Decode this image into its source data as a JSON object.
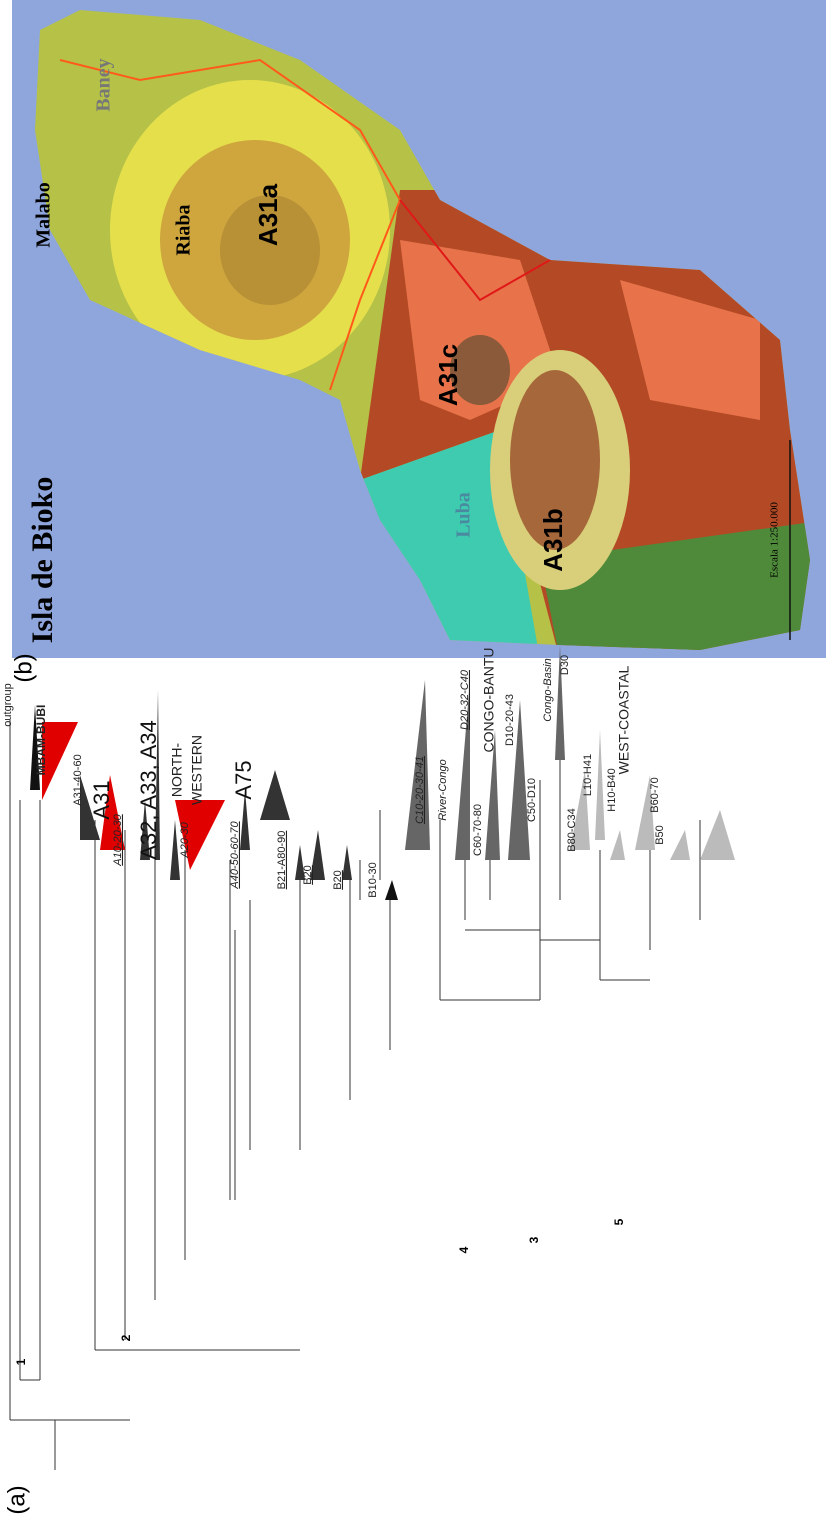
{
  "panel_a": {
    "label": "(a)",
    "outgroup": "outgroup",
    "groups": [
      "MBAM-BUBI",
      "A31",
      "A32, A33, A34",
      "NORTH-",
      "WESTERN",
      "A75",
      "CONGO-BANTU",
      "WEST-COASTAL"
    ],
    "clades": [
      "A31-40-60",
      "A10-20-30",
      "A20-30",
      "A40-50-60-70",
      "B21-A80-90",
      "B20",
      "B20",
      "B10-30",
      "C10-20-30-41",
      "River-Congo",
      "D20-32-C40",
      "C60-70-80",
      "D10-20-43",
      "Congo-Basin",
      "C50-D10",
      "D30",
      "B80-C34",
      "L10-H41",
      "H10-B40",
      "B50",
      "B60-70"
    ],
    "nodes": [
      "1",
      "2",
      "3",
      "4",
      "5"
    ]
  },
  "panel_b": {
    "label": "(b)",
    "title": "Isla de Bioko",
    "places": [
      "Malabo",
      "Baney",
      "Riaba",
      "Luba"
    ],
    "zones": [
      "A31a",
      "A31b",
      "A31c"
    ],
    "scale": "Escala 1:250.000"
  }
}
